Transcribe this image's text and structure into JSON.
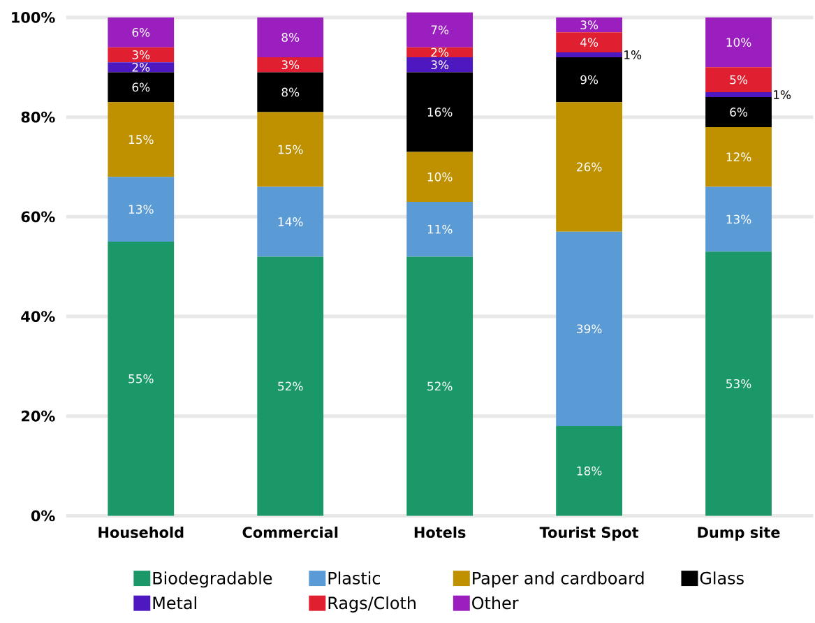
{
  "chart_data": {
    "type": "bar",
    "stacked": true,
    "categories": [
      "Household",
      "Commercial",
      "Hotels",
      "Tourist Spot",
      "Dump site"
    ],
    "series": [
      {
        "name": "Biodegradable",
        "color": "#1a9868",
        "values": [
          55,
          52,
          52,
          18,
          53
        ],
        "value_labels": [
          "55%",
          "52%",
          "52%",
          "18%",
          "53%"
        ]
      },
      {
        "name": "Plastic",
        "color": "#5b9bd5",
        "values": [
          13,
          14,
          11,
          39,
          13
        ],
        "value_labels": [
          "13%",
          "14%",
          "11%",
          "39%",
          "13%"
        ]
      },
      {
        "name": "Paper and  cardboard",
        "color": "#bf9000",
        "values": [
          15,
          15,
          10,
          26,
          12
        ],
        "value_labels": [
          "15%",
          "15%",
          "10%",
          "26%",
          "12%"
        ]
      },
      {
        "name": "Glass",
        "color": "#000000",
        "values": [
          6,
          8,
          16,
          9,
          6
        ],
        "value_labels": [
          "6%",
          "8%",
          "16%",
          "9%",
          "6%"
        ]
      },
      {
        "name": "Metal",
        "color": "#4e18c0",
        "values": [
          2,
          null,
          3,
          1,
          1
        ],
        "value_labels": [
          "2%",
          null,
          "3%",
          "1%",
          "1%"
        ]
      },
      {
        "name": "Rags/Cloth",
        "color": "#e02030",
        "values": [
          3,
          3,
          2,
          4,
          5
        ],
        "value_labels": [
          "3%",
          "3%",
          "2%",
          "4%",
          "5%"
        ]
      },
      {
        "name": "Other",
        "color": "#9b1fbf",
        "values": [
          6,
          8,
          7,
          3,
          10
        ],
        "value_labels": [
          "6%",
          "8%",
          "7%",
          "3%",
          "10%"
        ]
      }
    ],
    "ylim": [
      0,
      101
    ],
    "yticks": [
      {
        "value": 0,
        "label": "0%"
      },
      {
        "value": 20,
        "label": "20%"
      },
      {
        "value": 40,
        "label": "40%"
      },
      {
        "value": 60,
        "label": "60%"
      },
      {
        "value": 80,
        "label": "80%"
      },
      {
        "value": 100,
        "label": "100%"
      }
    ],
    "grid": "y",
    "legend": "bottom"
  }
}
